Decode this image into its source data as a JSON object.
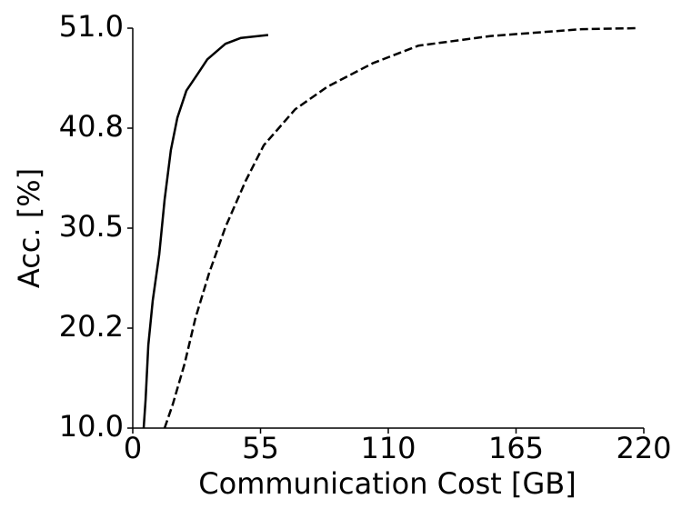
{
  "chart_data": {
    "type": "line",
    "xlabel": "Communication Cost [GB]",
    "ylabel": "Acc. [%]",
    "xlim": [
      0,
      220
    ],
    "ylim": [
      10,
      51
    ],
    "xticks": [
      0,
      55,
      110,
      165,
      220
    ],
    "yticks": [
      {
        "value": 10,
        "label": "10.0"
      },
      {
        "value": 20.25,
        "label": "20.2"
      },
      30.5,
      {
        "value": 40.75,
        "label": "40.8"
      },
      {
        "value": 51,
        "label": "51.0"
      }
    ],
    "series": [
      {
        "color": "#000000",
        "linestyle": "solid",
        "x": [
          4.7,
          5.5,
          6.7,
          8.6,
          11.4,
          13.7,
          16.4,
          19.2,
          23.1,
          28.2,
          32.1,
          39.9,
          46.6,
          58.3
        ],
        "values": [
          10,
          12.9,
          18.5,
          23.1,
          27.8,
          33.4,
          38.5,
          41.8,
          44.6,
          46.4,
          47.8,
          49.4,
          50.0,
          50.3
        ]
      },
      {
        "color": "#000000",
        "linestyle": "dashed",
        "x": [
          13.7,
          17.2,
          22.3,
          27,
          32.9,
          39.9,
          48.5,
          56.4,
          70,
          83.8,
          103.3,
          122.9,
          154.2,
          193.3,
          216.9
        ],
        "values": [
          10,
          12.4,
          16.6,
          21.3,
          25.9,
          30.6,
          35.3,
          39,
          42.7,
          45,
          47.4,
          49.2,
          50.2,
          50.9,
          51.0
        ]
      }
    ]
  }
}
